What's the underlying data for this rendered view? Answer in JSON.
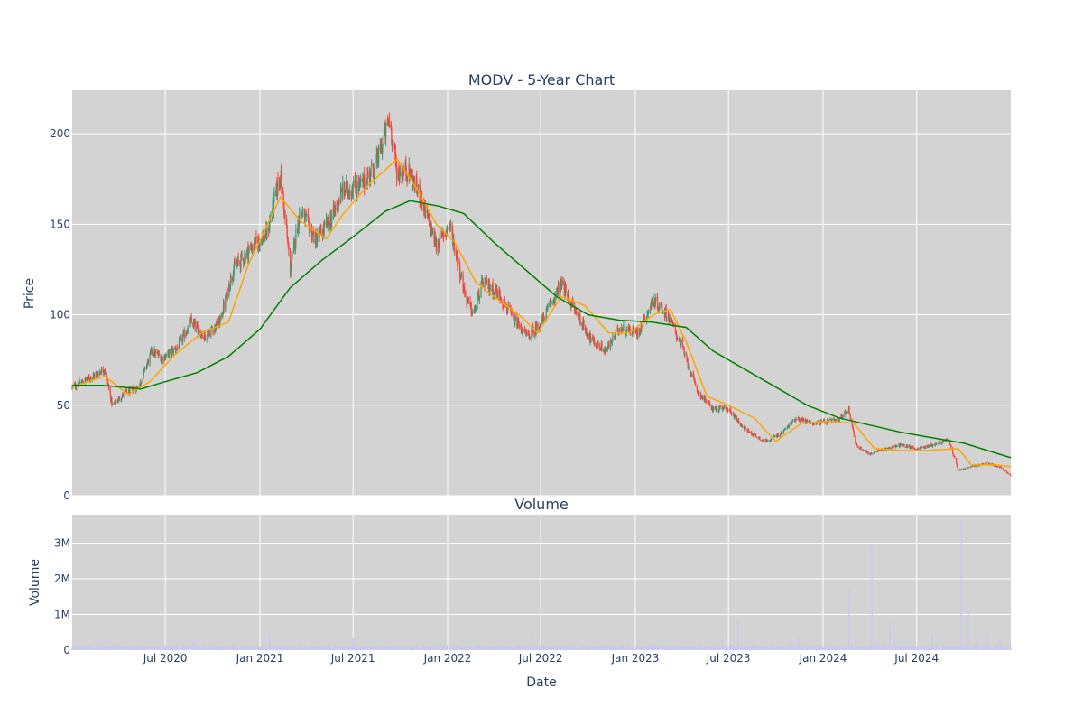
{
  "chart_data": [
    {
      "type": "candlestick",
      "title": "MODV - 5-Year Chart",
      "xlabel": "",
      "ylabel": "Price",
      "ylim": [
        0,
        224
      ],
      "xlim": [
        "2020-01-02",
        "2024-12-31"
      ],
      "grid": true,
      "legend": "none",
      "x_ticks": [
        "2020-07-01",
        "2021-01-01",
        "2021-07-01",
        "2022-01-01",
        "2022-07-01",
        "2023-01-01",
        "2023-07-01",
        "2024-01-01",
        "2024-07-01"
      ],
      "y_ticks": [
        0,
        50,
        100,
        150,
        200
      ],
      "up_color": "#3d9970",
      "down_color": "#ff4136",
      "price_anchors": [
        [
          "2020-01-02",
          60
        ],
        [
          "2020-02-10",
          66
        ],
        [
          "2020-03-05",
          70
        ],
        [
          "2020-03-20",
          50
        ],
        [
          "2020-04-15",
          57
        ],
        [
          "2020-05-10",
          60
        ],
        [
          "2020-06-05",
          80
        ],
        [
          "2020-06-25",
          76
        ],
        [
          "2020-07-25",
          82
        ],
        [
          "2020-08-20",
          96
        ],
        [
          "2020-09-15",
          88
        ],
        [
          "2020-10-15",
          96
        ],
        [
          "2020-11-10",
          125
        ],
        [
          "2020-12-15",
          137
        ],
        [
          "2021-01-15",
          145
        ],
        [
          "2021-02-10",
          178
        ],
        [
          "2021-03-01",
          125
        ],
        [
          "2021-03-20",
          158
        ],
        [
          "2021-04-20",
          141
        ],
        [
          "2021-05-20",
          153
        ],
        [
          "2021-06-10",
          168
        ],
        [
          "2021-07-20",
          172
        ],
        [
          "2021-08-15",
          183
        ],
        [
          "2021-09-10",
          208
        ],
        [
          "2021-09-25",
          178
        ],
        [
          "2021-10-15",
          180
        ],
        [
          "2021-11-10",
          165
        ],
        [
          "2021-12-10",
          138
        ],
        [
          "2022-01-05",
          150
        ],
        [
          "2022-02-05",
          110
        ],
        [
          "2022-02-20",
          100
        ],
        [
          "2022-03-10",
          118
        ],
        [
          "2022-04-10",
          112
        ],
        [
          "2022-05-10",
          97
        ],
        [
          "2022-06-05",
          88
        ],
        [
          "2022-07-01",
          95
        ],
        [
          "2022-08-10",
          117
        ],
        [
          "2022-09-10",
          100
        ],
        [
          "2022-10-10",
          85
        ],
        [
          "2022-11-05",
          80
        ],
        [
          "2022-12-01",
          93
        ],
        [
          "2023-01-05",
          90
        ],
        [
          "2023-02-05",
          108
        ],
        [
          "2023-03-05",
          100
        ],
        [
          "2023-04-01",
          83
        ],
        [
          "2023-05-01",
          58
        ],
        [
          "2023-06-01",
          48
        ],
        [
          "2023-07-01",
          48
        ],
        [
          "2023-08-01",
          37
        ],
        [
          "2023-09-10",
          30
        ],
        [
          "2023-10-10",
          34
        ],
        [
          "2023-11-10",
          43
        ],
        [
          "2023-12-10",
          40
        ],
        [
          "2024-01-10",
          41
        ],
        [
          "2024-02-01",
          42
        ],
        [
          "2024-02-20",
          48
        ],
        [
          "2024-03-05",
          28
        ],
        [
          "2024-04-01",
          23
        ],
        [
          "2024-05-01",
          26
        ],
        [
          "2024-06-01",
          28
        ],
        [
          "2024-07-01",
          26
        ],
        [
          "2024-08-01",
          28
        ],
        [
          "2024-09-01",
          31
        ],
        [
          "2024-09-20",
          14
        ],
        [
          "2024-10-15",
          16
        ],
        [
          "2024-11-15",
          18
        ],
        [
          "2024-12-10",
          16
        ],
        [
          "2024-12-31",
          11
        ]
      ],
      "moving_averages": [
        {
          "color": "#ffa500",
          "values": [
            [
              "2020-01-02",
              60
            ],
            [
              "2020-03-05",
              66
            ],
            [
              "2020-04-20",
              56
            ],
            [
              "2020-06-01",
              63
            ],
            [
              "2020-07-20",
              78
            ],
            [
              "2020-09-10",
              90
            ],
            [
              "2020-11-01",
              96
            ],
            [
              "2020-12-10",
              128
            ],
            [
              "2021-02-10",
              165
            ],
            [
              "2021-03-20",
              152
            ],
            [
              "2021-05-10",
              142
            ],
            [
              "2021-06-10",
              155
            ],
            [
              "2021-08-01",
              172
            ],
            [
              "2021-09-25",
              186
            ],
            [
              "2021-11-01",
              170
            ],
            [
              "2021-12-10",
              150
            ],
            [
              "2022-01-15",
              140
            ],
            [
              "2022-02-25",
              118
            ],
            [
              "2022-04-01",
              110
            ],
            [
              "2022-05-20",
              100
            ],
            [
              "2022-06-25",
              90
            ],
            [
              "2022-08-10",
              110
            ],
            [
              "2022-09-25",
              105
            ],
            [
              "2022-11-10",
              90
            ],
            [
              "2022-12-20",
              90
            ],
            [
              "2023-02-05",
              100
            ],
            [
              "2023-03-10",
              103
            ],
            [
              "2023-04-10",
              85
            ],
            [
              "2023-05-20",
              55
            ],
            [
              "2023-07-01",
              50
            ],
            [
              "2023-08-20",
              43
            ],
            [
              "2023-10-01",
              30
            ],
            [
              "2023-11-20",
              40
            ],
            [
              "2024-01-10",
              41
            ],
            [
              "2024-03-01",
              40
            ],
            [
              "2024-04-10",
              26
            ],
            [
              "2024-06-01",
              25
            ],
            [
              "2024-07-20",
              25
            ],
            [
              "2024-09-20",
              26
            ],
            [
              "2024-10-15",
              17
            ],
            [
              "2024-12-01",
              17
            ],
            [
              "2024-12-31",
              16
            ]
          ]
        },
        {
          "color": "#008000",
          "values": [
            [
              "2020-01-02",
              61
            ],
            [
              "2020-03-01",
              61
            ],
            [
              "2020-05-15",
              59
            ],
            [
              "2020-07-01",
              63
            ],
            [
              "2020-09-01",
              68
            ],
            [
              "2020-11-01",
              77
            ],
            [
              "2021-01-01",
              92
            ],
            [
              "2021-03-01",
              115
            ],
            [
              "2021-05-01",
              130
            ],
            [
              "2021-07-01",
              143
            ],
            [
              "2021-09-01",
              157
            ],
            [
              "2021-10-20",
              163
            ],
            [
              "2021-12-15",
              160
            ],
            [
              "2022-02-01",
              156
            ],
            [
              "2022-04-01",
              140
            ],
            [
              "2022-06-01",
              125
            ],
            [
              "2022-08-01",
              110
            ],
            [
              "2022-10-01",
              100
            ],
            [
              "2022-12-01",
              97
            ],
            [
              "2023-02-01",
              96
            ],
            [
              "2023-04-10",
              93
            ],
            [
              "2023-06-01",
              80
            ],
            [
              "2023-08-01",
              70
            ],
            [
              "2023-10-01",
              60
            ],
            [
              "2023-12-01",
              50
            ],
            [
              "2024-02-01",
              43
            ],
            [
              "2024-04-01",
              39
            ],
            [
              "2024-06-01",
              35
            ],
            [
              "2024-08-01",
              32
            ],
            [
              "2024-10-01",
              29
            ],
            [
              "2024-12-31",
              21
            ]
          ]
        }
      ]
    },
    {
      "type": "bar",
      "title": "Volume",
      "xlabel": "Date",
      "ylabel": "Volume",
      "ylim": [
        0,
        3800000
      ],
      "y_ticks": [
        0,
        1000000,
        2000000,
        3000000
      ],
      "y_tick_labels": [
        "0",
        "1M",
        "2M",
        "3M"
      ],
      "x_tick_labels": [
        "Jul 2020",
        "Jan 2021",
        "Jul 2021",
        "Jan 2022",
        "Jul 2022",
        "Jan 2023",
        "Jul 2023",
        "Jan 2024",
        "Jul 2024"
      ],
      "bar_color": "#c8c8f0",
      "base_level": 100000,
      "spikes": [
        [
          "2020-02-20",
          350000
        ],
        [
          "2020-08-25",
          250000
        ],
        [
          "2021-01-20",
          450000
        ],
        [
          "2021-07-01",
          350000
        ],
        [
          "2022-06-15",
          450000
        ],
        [
          "2022-12-25",
          350000
        ],
        [
          "2023-06-20",
          300000
        ],
        [
          "2023-07-20",
          800000
        ],
        [
          "2023-09-30",
          900000
        ],
        [
          "2023-10-30",
          300000
        ],
        [
          "2023-11-15",
          350000
        ],
        [
          "2024-02-20",
          1700000
        ],
        [
          "2024-03-05",
          350000
        ],
        [
          "2024-04-05",
          2900000
        ],
        [
          "2024-04-15",
          300000
        ],
        [
          "2024-05-10",
          800000
        ],
        [
          "2024-05-20",
          350000
        ],
        [
          "2024-08-01",
          450000
        ],
        [
          "2024-09-15",
          350000
        ],
        [
          "2024-09-26",
          3600000
        ],
        [
          "2024-10-10",
          1100000
        ],
        [
          "2024-10-25",
          350000
        ],
        [
          "2024-11-15",
          550000
        ],
        [
          "2024-12-10",
          250000
        ],
        [
          "2024-12-28",
          400000
        ]
      ]
    }
  ]
}
